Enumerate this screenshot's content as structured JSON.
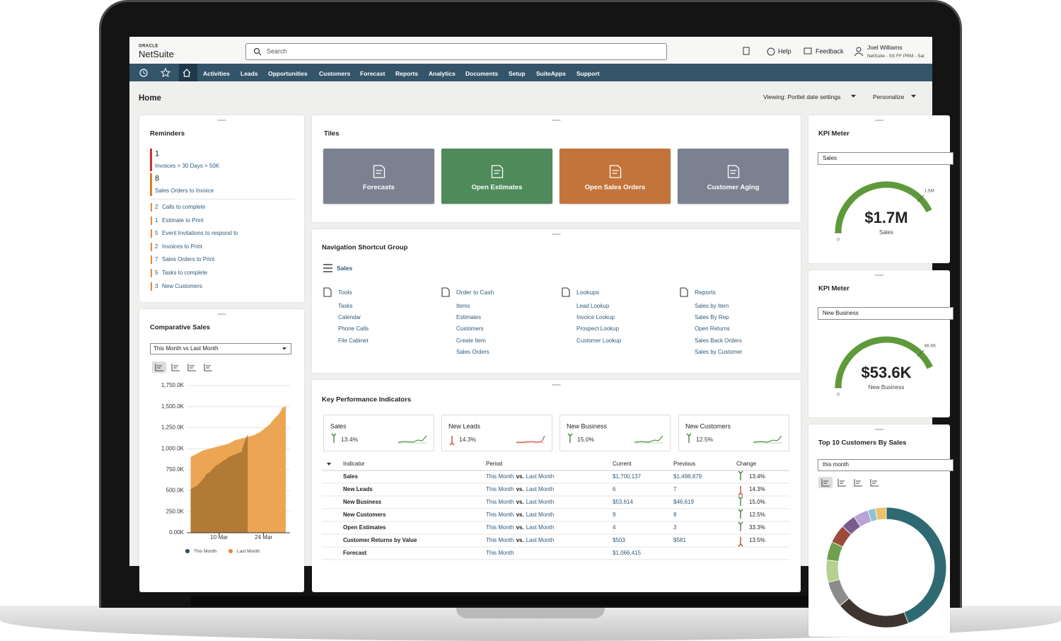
{
  "header": {
    "brand_top": "ORACLE",
    "brand": "NetSuite",
    "search": "Search",
    "help": "Help",
    "feedback": "Feedback",
    "user_name": "Joel Williams",
    "user_role": "NetSuite - SS FF PRM - Sal"
  },
  "nav": {
    "items": [
      "Activities",
      "Leads",
      "Opportunities",
      "Customers",
      "Forecast",
      "Reports",
      "Analytics",
      "Documents",
      "Setup",
      "SuiteApps",
      "Support"
    ]
  },
  "page": {
    "title": "Home",
    "viewing": "Viewing: Portlet date settings",
    "personalize": "Personalize"
  },
  "reminders": {
    "title": "Reminders",
    "highlights": [
      {
        "count": 1,
        "label": "Invoices > 30 Days > 50K",
        "color": "#d0312d"
      },
      {
        "count": 8,
        "label": "Sales Orders to Invoice",
        "color": "#e07b1f"
      }
    ],
    "items": [
      {
        "count": 2,
        "label": "Calls to complete"
      },
      {
        "count": 1,
        "label": "Estimate to Print"
      },
      {
        "count": 5,
        "label": "Event Invitations to respond to"
      },
      {
        "count": 2,
        "label": "Invoices to Print"
      },
      {
        "count": 7,
        "label": "Sales Orders to Print"
      },
      {
        "count": 5,
        "label": "Tasks to complete"
      },
      {
        "count": 3,
        "label": "New Customers"
      }
    ]
  },
  "comparative_sales": {
    "title": "Comparative Sales",
    "selector": "This Month vs Last Month",
    "chart": {
      "type": "area",
      "x": [
        1,
        2,
        3,
        4,
        5,
        6,
        7,
        8,
        9,
        10,
        11,
        12,
        13,
        14,
        15,
        16,
        17,
        18,
        19,
        20,
        21,
        22,
        23,
        24,
        25,
        26,
        27,
        28,
        29,
        30,
        31
      ],
      "xlim": [
        1,
        31
      ],
      "xticks": [
        {
          "value": 10,
          "label": "10 Mar"
        },
        {
          "value": 24,
          "label": "24 Mar"
        }
      ],
      "ylim": [
        0,
        1750
      ],
      "yticks": [
        {
          "value": 0,
          "label": "0.00K"
        },
        {
          "value": 250,
          "label": "250.0K"
        },
        {
          "value": 500,
          "label": "500.0K"
        },
        {
          "value": 750,
          "label": "750.0K"
        },
        {
          "value": 1000,
          "label": "1,000.0K"
        },
        {
          "value": 1250,
          "label": "1,250.0K"
        },
        {
          "value": 1500,
          "label": "1,500.0K"
        },
        {
          "value": 1750,
          "label": "1,750.0K"
        }
      ],
      "grid": true,
      "series": [
        {
          "name": "Last Month",
          "color": "#e8892b",
          "fill": "#eca653",
          "values": [
            900,
            920,
            940,
            960,
            980,
            990,
            1000,
            1010,
            1020,
            1030,
            1040,
            1050,
            1060,
            1080,
            1100,
            1110,
            1120,
            1130,
            1140,
            1150,
            1160,
            1180,
            1200,
            1230,
            1260,
            1290,
            1340,
            1380,
            1420,
            1490,
            1500
          ]
        },
        {
          "name": "This Month",
          "color": "#2b4d5c",
          "fill": "#b27a34",
          "values": [
            520,
            540,
            560,
            600,
            640,
            700,
            720,
            760,
            800,
            820,
            850,
            870,
            900,
            920,
            930,
            950,
            960,
            1080,
            1170,
            null,
            null,
            null,
            null,
            null,
            null,
            null,
            null,
            null,
            null,
            null,
            null
          ]
        }
      ],
      "legend_order": [
        1,
        0
      ]
    }
  },
  "tiles": {
    "title": "Tiles",
    "items": [
      {
        "label": "Forecasts",
        "color": "#7b8190"
      },
      {
        "label": "Open Estimates",
        "color": "#4f8a5a"
      },
      {
        "label": "Open Sales Orders",
        "color": "#c2743a"
      },
      {
        "label": "Customer Aging",
        "color": "#7b8190"
      }
    ]
  },
  "shortcuts": {
    "title": "Navigation Shortcut Group",
    "group": "Sales",
    "columns": [
      {
        "heading": "Tools",
        "links": [
          "Tasks",
          "Calendar",
          "Phone Calls",
          "File Cabinet"
        ]
      },
      {
        "heading": "Order to Cash",
        "links": [
          "Items",
          "Estimates",
          "Customers",
          "Create Item",
          "Sales Orders"
        ]
      },
      {
        "heading": "Lookups",
        "links": [
          "Lead Lookup",
          "Invoice Lookup",
          "Prospect Lookup",
          "Customer Lookup"
        ]
      },
      {
        "heading": "Reports",
        "links": [
          "Sales by Item",
          "Sales By Rep",
          "Open Returns",
          "Sales Back Orders",
          "Sales by Customer"
        ]
      }
    ]
  },
  "kpis": {
    "title": "Key Performance Indicators",
    "cards": [
      {
        "name": "Sales",
        "change": "13.4%",
        "direction": "up"
      },
      {
        "name": "New Leads",
        "change": "14.3%",
        "direction": "down"
      },
      {
        "name": "New Business",
        "change": "15.0%",
        "direction": "up"
      },
      {
        "name": "New Customers",
        "change": "12.5%",
        "direction": "up"
      }
    ],
    "table": {
      "columns": [
        "Indicator",
        "Period",
        "Current",
        "Previous",
        "Change"
      ],
      "rows": [
        {
          "indicator": "Sales",
          "period": [
            "This Month",
            "vs.",
            "Last Month"
          ],
          "current": "$1,700,137",
          "previous": "$1,498,879",
          "change": "13.4%",
          "direction": "up"
        },
        {
          "indicator": "New Leads",
          "period": [
            "This Month",
            "vs.",
            "Last Month"
          ],
          "current": "6",
          "previous": "7",
          "change": "14.3%",
          "direction": "down"
        },
        {
          "indicator": "New Business",
          "period": [
            "This Month",
            "vs.",
            "Last Month"
          ],
          "current": "$53,614",
          "previous": "$46,619",
          "change": "15.0%",
          "direction": "up"
        },
        {
          "indicator": "New Customers",
          "period": [
            "This Month",
            "vs.",
            "Last Month"
          ],
          "current": "9",
          "previous": "8",
          "change": "12.5%",
          "direction": "up"
        },
        {
          "indicator": "Open Estimates",
          "period": [
            "This Month",
            "vs.",
            "Last Month"
          ],
          "current": "4",
          "previous": "3",
          "change": "33.3%",
          "direction": "up"
        },
        {
          "indicator": "Customer Returns by Value",
          "period": [
            "This Month",
            "vs.",
            "Last Month"
          ],
          "current": "$503",
          "previous": "$581",
          "change": "13.5%",
          "direction": "down"
        },
        {
          "indicator": "Forecast",
          "period": [
            "This Month"
          ],
          "current": "$1,066,415"
        }
      ]
    }
  },
  "kpi_meters": [
    {
      "title": "KPI Meter",
      "selector": "Sales",
      "value": 1.7,
      "value_label": "$1.7M",
      "caption": "Sales",
      "min": 0,
      "target": {
        "value": 1.5,
        "label": "1.5M"
      },
      "color": "#5e9a3a"
    },
    {
      "title": "KPI Meter",
      "selector": "New Business",
      "value": 53.6,
      "value_label": "$53.6K",
      "caption": "New Business",
      "min": 0,
      "target": {
        "value": 46.6,
        "label": "46.6K"
      },
      "color": "#5e9a3a"
    }
  ],
  "top_customers": {
    "title": "Top 10 Customers By Sales",
    "selector": "this month",
    "chart": {
      "type": "donut",
      "values": [
        44,
        20,
        7,
        6,
        5,
        5,
        4,
        4,
        2,
        3
      ],
      "colors": [
        "#2f6a73",
        "#3f3530",
        "#8c8c8c",
        "#b5d08f",
        "#6f9f4f",
        "#9c4a3c",
        "#7a5c8c",
        "#b8a3d6",
        "#8fc3d6",
        "#e8c46a"
      ]
    }
  }
}
